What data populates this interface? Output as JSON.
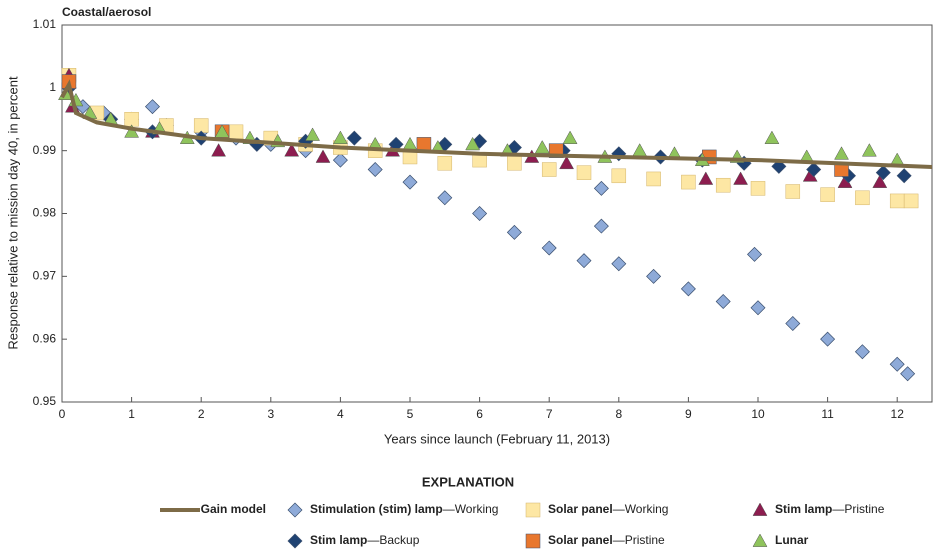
{
  "chart_data": {
    "type": "scatter",
    "title": "Coastal/aerosol",
    "x_label": "Years since launch (February 11, 2013)",
    "y_label": "Response relative to mission day 40, in percent",
    "legend_title": "EXPLANATION",
    "xlim": [
      0,
      12.5
    ],
    "ylim": [
      0.95,
      1.01
    ],
    "xticks": [
      0,
      1,
      2,
      3,
      4,
      5,
      6,
      7,
      8,
      9,
      10,
      11,
      12
    ],
    "yticks": [
      0.95,
      0.96,
      0.97,
      0.98,
      0.99,
      1,
      1.01
    ],
    "series": [
      {
        "name": "Gain model",
        "marker": "line",
        "color": "#7d6b47",
        "x": [
          0,
          0.1,
          0.2,
          0.5,
          1,
          2,
          4,
          6,
          8,
          10,
          12.5
        ],
        "values": [
          0.9985,
          1.0005,
          0.996,
          0.9945,
          0.9935,
          0.992,
          0.9905,
          0.9895,
          0.989,
          0.9885,
          0.9874
        ]
      },
      {
        "name": "Stimulation (stim) lamp",
        "qualifier": "—Working",
        "marker": "diamond",
        "color": "#8eaad8",
        "x": [
          0.1,
          0.3,
          0.6,
          1.0,
          1.3,
          1.5,
          2.0,
          2.5,
          3.0,
          3.5,
          4.0,
          4.5,
          5.0,
          5.5,
          6.0,
          6.5,
          7.0,
          7.5,
          7.75,
          7.75,
          8.0,
          8.5,
          9.0,
          9.5,
          9.95,
          10.0,
          10.5,
          11.0,
          11.5,
          12.0,
          12.15
        ],
        "values": [
          1.0,
          0.997,
          0.996,
          0.995,
          0.997,
          0.994,
          0.993,
          0.992,
          0.991,
          0.99,
          0.9885,
          0.987,
          0.985,
          0.9825,
          0.98,
          0.977,
          0.9745,
          0.9725,
          0.984,
          0.978,
          0.972,
          0.97,
          0.968,
          0.966,
          0.9735,
          0.965,
          0.9625,
          0.96,
          0.958,
          0.956,
          0.9545
        ]
      },
      {
        "name": "Solar panel",
        "qualifier": "—Working",
        "marker": "square",
        "color": "#fde7a4",
        "x": [
          0.1,
          0.5,
          1.0,
          1.5,
          2.0,
          2.5,
          3.0,
          3.5,
          4.0,
          4.5,
          5.0,
          5.5,
          6.0,
          6.5,
          7.0,
          7.5,
          8.0,
          8.5,
          9.0,
          9.5,
          10.0,
          10.5,
          11.0,
          11.5,
          12.0,
          12.2
        ],
        "values": [
          1.002,
          0.996,
          0.995,
          0.994,
          0.994,
          0.993,
          0.992,
          0.991,
          0.9905,
          0.99,
          0.989,
          0.988,
          0.9885,
          0.988,
          0.987,
          0.9865,
          0.986,
          0.9855,
          0.985,
          0.9845,
          0.984,
          0.9835,
          0.983,
          0.9825,
          0.982,
          0.982
        ]
      },
      {
        "name": "Stim lamp",
        "qualifier": "—Pristine",
        "marker": "triangle",
        "color": "#8c1d4f",
        "x": [
          0.1,
          0.15,
          1.3,
          2.25,
          3.3,
          3.75,
          4.75,
          6.75,
          7.25,
          9.25,
          9.75,
          10.75,
          11.25,
          11.75
        ],
        "values": [
          1.002,
          0.997,
          0.993,
          0.99,
          0.99,
          0.989,
          0.99,
          0.989,
          0.988,
          0.9855,
          0.9855,
          0.986,
          0.985,
          0.985
        ]
      },
      {
        "name": "Stim lamp",
        "qualifier": "—Backup",
        "marker": "diamond",
        "color": "#1f4272",
        "x": [
          0.1,
          0.7,
          1.3,
          2.0,
          2.8,
          3.5,
          4.2,
          4.8,
          5.5,
          6.0,
          6.5,
          7.2,
          8.0,
          8.6,
          9.2,
          9.8,
          10.3,
          10.8,
          11.3,
          11.8,
          12.1
        ],
        "values": [
          1.0,
          0.995,
          0.993,
          0.992,
          0.991,
          0.9915,
          0.992,
          0.991,
          0.991,
          0.9915,
          0.9905,
          0.99,
          0.9895,
          0.989,
          0.9885,
          0.988,
          0.9875,
          0.987,
          0.986,
          0.9865,
          0.986
        ]
      },
      {
        "name": "Solar panel",
        "qualifier": "—Pristine",
        "marker": "square",
        "color": "#e8772e",
        "x": [
          0.1,
          2.3,
          5.2,
          7.1,
          9.3,
          11.2
        ],
        "values": [
          1.001,
          0.993,
          0.991,
          0.99,
          0.989,
          0.987
        ]
      },
      {
        "name": "Lunar",
        "marker": "triangle",
        "color": "#8fc35c",
        "x": [
          0.05,
          0.2,
          0.4,
          0.7,
          1.0,
          1.4,
          1.8,
          2.3,
          2.7,
          3.1,
          3.6,
          4.0,
          4.5,
          5.0,
          5.4,
          5.9,
          6.4,
          6.9,
          7.3,
          7.8,
          8.3,
          8.8,
          9.2,
          9.7,
          10.2,
          10.7,
          11.2,
          11.6,
          12.0
        ],
        "values": [
          0.999,
          0.998,
          0.996,
          0.995,
          0.993,
          0.9935,
          0.992,
          0.993,
          0.992,
          0.9915,
          0.9925,
          0.992,
          0.991,
          0.991,
          0.9905,
          0.991,
          0.99,
          0.9905,
          0.992,
          0.989,
          0.99,
          0.9895,
          0.9885,
          0.989,
          0.992,
          0.989,
          0.9895,
          0.99,
          0.9885
        ]
      }
    ]
  }
}
